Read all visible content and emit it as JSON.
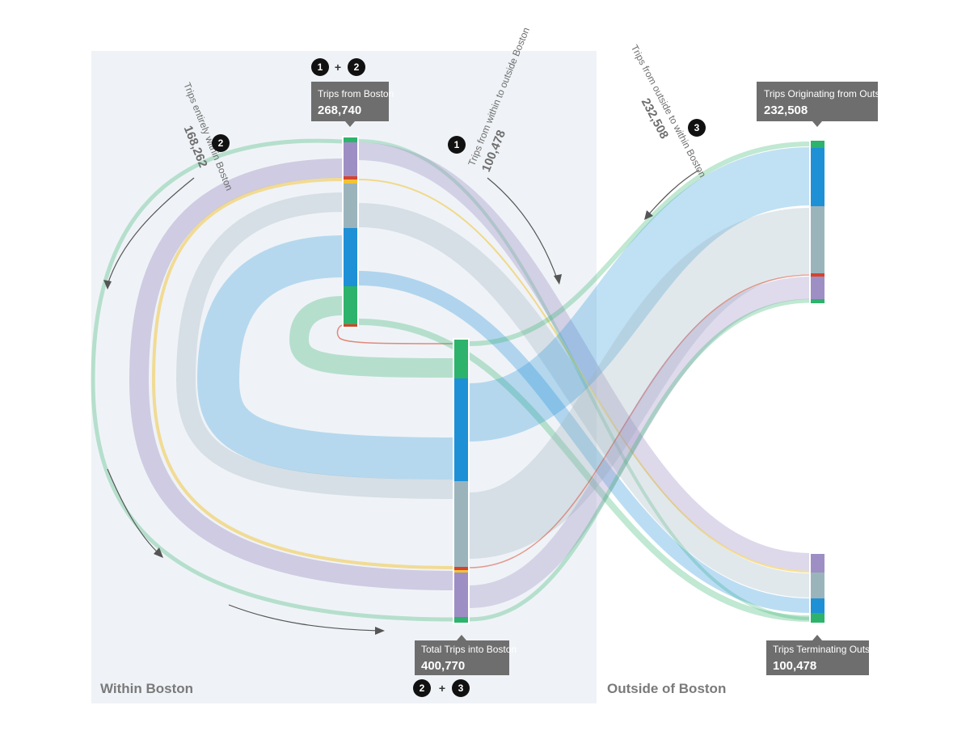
{
  "colors": {
    "green": "#2db36b",
    "blue": "#1e90d6",
    "slate": "#9bb4bc",
    "purple": "#9d8fc4",
    "yellow": "#f3c332",
    "red": "#d7432a",
    "panel": "#eff3f7",
    "callout": "#6e6e6e"
  },
  "regions": {
    "within": "Within Boston",
    "outside": "Outside of Boston"
  },
  "callouts": {
    "from_boston": {
      "title": "Trips from Boston",
      "value": "268,740"
    },
    "into_boston": {
      "title": "Total Trips into Boston",
      "value": "400,770"
    },
    "orig_outside": {
      "title": "Trips Originating from Outside",
      "value": "232,508"
    },
    "term_outside": {
      "title": "Trips Terminating Outside",
      "value": "100,478"
    }
  },
  "flows": {
    "within": {
      "label": "Trips entirely within Boston",
      "value": "168,262",
      "badge": "2"
    },
    "within_to_outside": {
      "label": "Trips from within to outside Boston",
      "value": "100,478",
      "badge": "1"
    },
    "outside_to_within": {
      "label": "Trips from outside to within Boston",
      "value": "232,508",
      "badge": "3"
    }
  },
  "badges": {
    "top_a": "1",
    "top_plus": "+",
    "top_b": "2",
    "bottom_a": "2",
    "bottom_plus": "+",
    "bottom_b": "3"
  }
}
